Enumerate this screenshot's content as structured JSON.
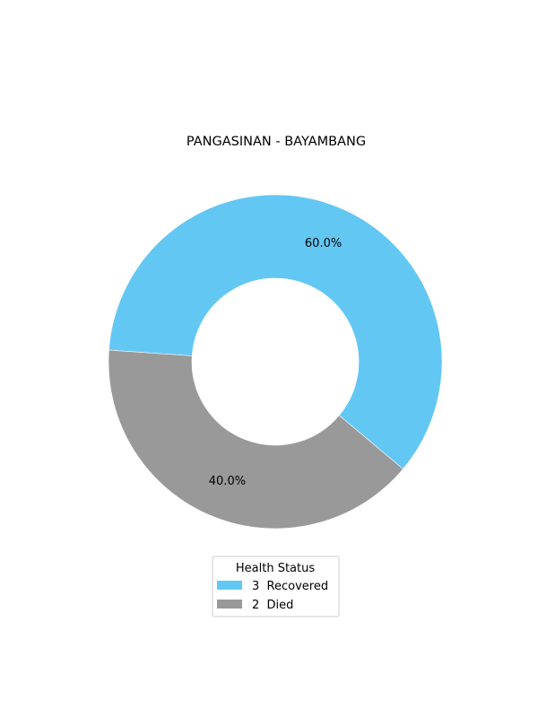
{
  "chart_data": {
    "type": "pie",
    "style": "donut",
    "title": "PANGASINAN - BAYAMBANG",
    "start_angle_deg": 176,
    "direction": "clockwise",
    "slices": [
      {
        "label": "Recovered",
        "count": 3,
        "value": 60.0,
        "pct_label": "60.0%",
        "color": "#63c7f3",
        "legend_text": "3  Recovered"
      },
      {
        "label": "Died",
        "count": 2,
        "value": 40.0,
        "pct_label": "40.0%",
        "color": "#999999",
        "legend_text": "2  Died"
      }
    ],
    "legend": {
      "title": "Health Status",
      "placement": "bottom-center"
    }
  }
}
